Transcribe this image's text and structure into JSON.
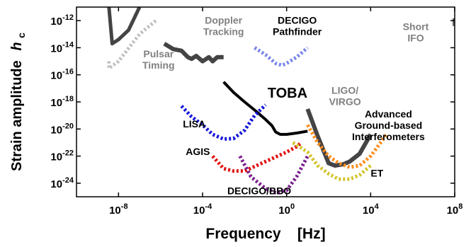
{
  "chart_data": {
    "type": "line",
    "xlabel": "Frequency    [Hz]",
    "ylabel": "Strain amplitude",
    "ylabel_symbol": "h",
    "ylabel_subscript": "c",
    "x_scale": "log",
    "y_scale": "log",
    "xlim": [
      1e-10,
      100000000.0
    ],
    "ylim": [
      1e-25,
      1e-11
    ],
    "x_ticks": [
      {
        "value": 1e-08,
        "base": "10",
        "exp": "-8"
      },
      {
        "value": 0.0001,
        "base": "10",
        "exp": "-4"
      },
      {
        "value": 1,
        "base": "10",
        "exp": "0"
      },
      {
        "value": 10000.0,
        "base": "10",
        "exp": "4"
      },
      {
        "value": 100000000.0,
        "base": "10",
        "exp": "8"
      }
    ],
    "y_ticks": [
      {
        "value": 1e-24,
        "base": "10",
        "exp": "-24"
      },
      {
        "value": 1e-22,
        "base": "10",
        "exp": "-22"
      },
      {
        "value": 1e-20,
        "base": "10",
        "exp": "-20"
      },
      {
        "value": 1e-18,
        "base": "10",
        "exp": "-18"
      },
      {
        "value": 1e-16,
        "base": "10",
        "exp": "-16"
      },
      {
        "value": 1e-14,
        "base": "10",
        "exp": "-14"
      },
      {
        "value": 1e-12,
        "base": "10",
        "exp": "-12"
      }
    ],
    "grid": false,
    "series": [
      {
        "name": "TOBA",
        "color": "#000000",
        "style": "solid",
        "width": 4,
        "x": [
          0.001,
          0.003,
          0.01,
          0.03,
          0.1,
          0.2,
          0.3,
          0.5,
          1,
          3,
          10
        ],
        "y": [
          3e-17,
          5e-18,
          1e-18,
          2.5e-19,
          5e-20,
          1.8e-20,
          6e-21,
          4e-21,
          4e-21,
          5e-21,
          7e-21
        ]
      },
      {
        "name": "LIGO/VIRGO",
        "color": "#444444",
        "style": "solid",
        "width": 6,
        "x": [
          10,
          30,
          100,
          200,
          500,
          1000,
          3000,
          6000,
          10000
        ],
        "y": [
          3e-19,
          3e-21,
          3e-23,
          2e-23,
          2.5e-23,
          4e-23,
          1.5e-22,
          1e-21,
          4e-21
        ]
      },
      {
        "name": "Pulsar Timing",
        "color": "#444444",
        "style": "solid",
        "width": 5,
        "x": [
          3.5e-09,
          4e-09,
          5e-09,
          1e-08,
          3e-08,
          1e-07
        ],
        "y": [
          1e-11,
          1e-12,
          2e-14,
          4e-14,
          2e-13,
          1e-11
        ]
      },
      {
        "name": "Pulsar Timing",
        "color": "#c0c0c0",
        "style": "dot",
        "width": 5,
        "x": [
          3.5e-09,
          3.5e-09,
          1e-08,
          1e-07,
          6e-07
        ],
        "y": [
          1e-15,
          3e-16,
          1e-15,
          1e-13,
          1e-12
        ]
      },
      {
        "name": "Doppler Tracking",
        "color": "#444444",
        "style": "solid",
        "width": 6,
        "x": [
          1.5e-06,
          4e-06,
          1e-05,
          2e-05,
          3e-05,
          5e-05,
          0.0001,
          0.0002,
          0.0003,
          0.0005,
          0.001
        ],
        "y": [
          2e-14,
          8e-15,
          6e-15,
          2e-15,
          1.5e-15,
          2.5e-15,
          1e-15,
          2e-15,
          1e-15,
          2e-15,
          2e-15
        ]
      },
      {
        "name": "DECIGO Pathfinder",
        "color": "#7a86e8",
        "style": "dot",
        "width": 5,
        "x": [
          0.03,
          0.1,
          0.3,
          0.6,
          1,
          3,
          10
        ],
        "y": [
          1e-14,
          3e-15,
          7e-16,
          5e-16,
          7e-16,
          2e-15,
          1e-14
        ]
      },
      {
        "name": "LISA",
        "color": "#1414d8",
        "style": "dot",
        "width": 5,
        "x": [
          1e-05,
          3e-05,
          0.0001,
          0.0003,
          0.001,
          0.003,
          0.01,
          0.03,
          0.1
        ],
        "y": [
          5e-19,
          8e-20,
          2e-20,
          4e-21,
          1.8e-21,
          2e-21,
          8e-21,
          1e-19,
          6e-19
        ]
      },
      {
        "name": "AGIS",
        "color": "#e01010",
        "style": "dot",
        "width": 5,
        "x": [
          0.0003,
          0.001,
          0.003,
          0.01,
          0.1,
          1,
          3,
          5
        ],
        "y": [
          1e-22,
          1.2e-23,
          8e-24,
          8e-24,
          4e-23,
          2e-22,
          5e-22,
          1e-21
        ]
      },
      {
        "name": "DECIGO/BBO",
        "color": "#7a1e8c",
        "style": "dot",
        "width": 5,
        "x": [
          0.006,
          0.02,
          0.1,
          0.3,
          1,
          3,
          10
        ],
        "y": [
          1e-22,
          3e-24,
          4e-25,
          2e-25,
          3e-25,
          3e-24,
          1e-22
        ]
      },
      {
        "name": "Advanced Ground-based Interferometers",
        "color": "#ff8c1a",
        "style": "dot",
        "width": 5,
        "x": [
          10,
          30,
          100,
          300,
          1000,
          3000,
          10000,
          30000,
          60000
        ],
        "y": [
          2e-20,
          1e-21,
          1e-22,
          3e-23,
          1.5e-23,
          2e-23,
          1e-22,
          1e-21,
          5e-21
        ]
      },
      {
        "name": "ET",
        "color": "#d4c42a",
        "style": "dot",
        "width": 5,
        "x": [
          2,
          10,
          30,
          100,
          300,
          1000,
          3000,
          10000
        ],
        "y": [
          1e-21,
          2e-22,
          2e-23,
          5e-24,
          2e-24,
          2e-24,
          4e-24,
          2e-23
        ]
      },
      {
        "name": "Short IFO",
        "color": "#666666",
        "style": "solid",
        "width": 6,
        "x": [
          100000000.0,
          100000000.0
        ],
        "y": [
          4e-13,
          1.5e-12
        ]
      }
    ],
    "annotations": [
      {
        "lines": [
          "Doppler",
          "Tracking"
        ],
        "color": "#808080",
        "x": 0.001,
        "y": 6e-13
      },
      {
        "lines": [
          "DECIGO",
          "Pathfinder"
        ],
        "color": "#000000",
        "x": 3.2,
        "y": 6e-13
      },
      {
        "lines": [
          "Pulsar",
          "Timing"
        ],
        "color": "#808080",
        "x": 8e-07,
        "y": 2e-15
      },
      {
        "lines": [
          "Short",
          "IFO"
        ],
        "color": "#808080",
        "x": 1400000.0,
        "y": 2e-13
      },
      {
        "lines": [
          "TOBA"
        ],
        "color": "#000000",
        "x": 1.1,
        "y": 2e-18
      },
      {
        "lines": [
          "LIGO/",
          "VIRGO"
        ],
        "color": "#808080",
        "x": 600,
        "y": 4e-18
      },
      {
        "lines": [
          "LISA"
        ],
        "color": "#000000",
        "x": 4e-05,
        "y": 1.3e-20
      },
      {
        "lines": [
          "Advanced",
          "Ground-based",
          "Interferometers"
        ],
        "color": "#000000",
        "x": 70000.0,
        "y": 7e-20
      },
      {
        "lines": [
          "AGIS"
        ],
        "color": "#000000",
        "x": 6e-05,
        "y": 1.2e-22
      },
      {
        "lines": [
          "DECIGO/BBO"
        ],
        "color": "#000000",
        "x": 0.05,
        "y": 1.5e-25
      },
      {
        "lines": [
          "ET"
        ],
        "color": "#000000",
        "x": 20000.0,
        "y": 3e-24
      }
    ]
  }
}
